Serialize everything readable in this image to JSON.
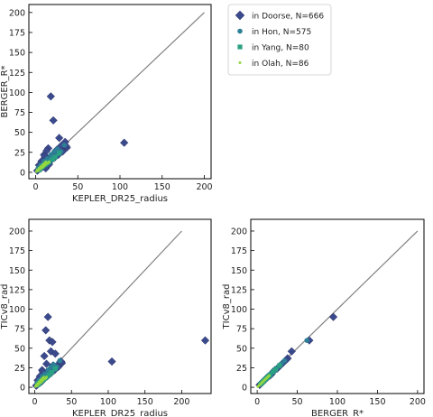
{
  "chart_data": [
    {
      "type": "scatter",
      "xlabel": "KEPLER_DR25_radius",
      "ylabel": "BERGER_R*",
      "xlim": [
        -8,
        208
      ],
      "ylim": [
        -8,
        210
      ],
      "xticks": [
        "0",
        "50",
        "100",
        "150",
        "200"
      ],
      "yticks": [
        "0",
        "25",
        "50",
        "75",
        "100",
        "125",
        "150",
        "175",
        "200"
      ],
      "reference_line": {
        "from": [
          0,
          0
        ],
        "to": [
          200,
          200
        ],
        "label": "y = x"
      },
      "series": [
        {
          "name": "in Doorse, N=666",
          "marker": "diamond",
          "color": "#3b4a8c",
          "points": [
            [
              18,
              95
            ],
            [
              21,
              65
            ],
            [
              15,
              30
            ],
            [
              28,
              43
            ],
            [
              35,
              38
            ],
            [
              105,
              37
            ],
            [
              10,
              22
            ],
            [
              12,
              18
            ],
            [
              17,
              14
            ],
            [
              25,
              28
            ],
            [
              30,
              27
            ],
            [
              33,
              30
            ],
            [
              22,
              23
            ],
            [
              8,
              10
            ],
            [
              5,
              6
            ],
            [
              3,
              3
            ],
            [
              14,
              12
            ],
            [
              20,
              17
            ],
            [
              27,
              22
            ],
            [
              32,
              26
            ],
            [
              37,
              31
            ],
            [
              4,
              9
            ],
            [
              6,
              5
            ],
            [
              9,
              7
            ],
            [
              11,
              20
            ],
            [
              13,
              27
            ],
            [
              16,
              10
            ],
            [
              19,
              21
            ],
            [
              23,
              19
            ],
            [
              26,
              24
            ],
            [
              30,
              33
            ],
            [
              36,
              33
            ],
            [
              2,
              2
            ],
            [
              7,
              14
            ],
            [
              12,
              5
            ]
          ]
        },
        {
          "name": "in Hon, N=575",
          "marker": "circle",
          "color": "#2c7f96",
          "points": [
            [
              5,
              4
            ],
            [
              7,
              6
            ],
            [
              9,
              8
            ],
            [
              11,
              10
            ],
            [
              13,
              11
            ],
            [
              15,
              13
            ],
            [
              17,
              15
            ],
            [
              19,
              17
            ],
            [
              21,
              18
            ],
            [
              24,
              20
            ],
            [
              27,
              23
            ],
            [
              30,
              26
            ],
            [
              3,
              5
            ],
            [
              6,
              9
            ],
            [
              10,
              14
            ],
            [
              14,
              17
            ],
            [
              18,
              22
            ],
            [
              22,
              26
            ],
            [
              26,
              29
            ],
            [
              34,
              34
            ]
          ]
        },
        {
          "name": "in Yang, N=80",
          "marker": "square",
          "color": "#2aa182",
          "points": [
            [
              4,
              3
            ],
            [
              6,
              5
            ],
            [
              8,
              7
            ],
            [
              10,
              9
            ],
            [
              12,
              10
            ],
            [
              14,
              12
            ],
            [
              16,
              13
            ],
            [
              20,
              16
            ],
            [
              23,
              19
            ],
            [
              28,
              24
            ]
          ]
        },
        {
          "name": "in Olah, N=86",
          "marker": "point",
          "color": "#93d741",
          "points": [
            [
              1,
              1
            ],
            [
              2,
              2
            ],
            [
              3,
              2
            ],
            [
              4,
              3
            ],
            [
              5,
              4
            ],
            [
              6,
              5
            ],
            [
              7,
              6
            ],
            [
              8,
              6
            ],
            [
              9,
              7
            ],
            [
              10,
              8
            ],
            [
              11,
              9
            ],
            [
              12,
              10
            ],
            [
              13,
              11
            ],
            [
              14,
              11
            ],
            [
              15,
              12
            ],
            [
              16,
              13
            ],
            [
              2,
              3
            ],
            [
              4,
              5
            ],
            [
              6,
              7
            ],
            [
              8,
              9
            ],
            [
              10,
              11
            ],
            [
              12,
              13
            ]
          ]
        }
      ]
    },
    {
      "type": "scatter",
      "xlabel": "KEPLER_DR25_radius",
      "ylabel": "TICv8_rad",
      "xlim": [
        -8,
        240
      ],
      "ylim": [
        -8,
        215
      ],
      "xticks": [
        "0",
        "50",
        "100",
        "150",
        "200"
      ],
      "yticks": [
        "0",
        "25",
        "50",
        "75",
        "100",
        "125",
        "150",
        "175",
        "200"
      ],
      "reference_line": {
        "from": [
          0,
          0
        ],
        "to": [
          200,
          200
        ],
        "label": "y = x"
      },
      "series": [
        {
          "name": "in Doorse, N=666",
          "marker": "diamond",
          "color": "#3b4a8c",
          "points": [
            [
              18,
              90
            ],
            [
              15,
              73
            ],
            [
              20,
              60
            ],
            [
              24,
              58
            ],
            [
              22,
              46
            ],
            [
              28,
              43
            ],
            [
              35,
              33
            ],
            [
              105,
              33
            ],
            [
              232,
              60
            ],
            [
              13,
              40
            ],
            [
              16,
              30
            ],
            [
              10,
              22
            ],
            [
              12,
              18
            ],
            [
              17,
              14
            ],
            [
              25,
              28
            ],
            [
              30,
              27
            ],
            [
              33,
              30
            ],
            [
              8,
              10
            ],
            [
              5,
              6
            ],
            [
              3,
              3
            ],
            [
              14,
              12
            ],
            [
              20,
              17
            ],
            [
              27,
              22
            ],
            [
              32,
              26
            ],
            [
              37,
              31
            ],
            [
              4,
              9
            ],
            [
              6,
              5
            ],
            [
              9,
              7
            ],
            [
              11,
              20
            ],
            [
              19,
              21
            ],
            [
              23,
              19
            ],
            [
              26,
              24
            ],
            [
              36,
              33
            ],
            [
              2,
              2
            ],
            [
              7,
              14
            ]
          ]
        },
        {
          "name": "in Hon, N=575",
          "marker": "circle",
          "color": "#2c7f96",
          "points": [
            [
              5,
              4
            ],
            [
              7,
              6
            ],
            [
              9,
              8
            ],
            [
              11,
              10
            ],
            [
              13,
              11
            ],
            [
              15,
              13
            ],
            [
              17,
              15
            ],
            [
              19,
              17
            ],
            [
              21,
              18
            ],
            [
              24,
              20
            ],
            [
              27,
              23
            ],
            [
              30,
              26
            ],
            [
              3,
              5
            ],
            [
              6,
              9
            ],
            [
              10,
              14
            ],
            [
              14,
              17
            ],
            [
              18,
              22
            ],
            [
              22,
              26
            ],
            [
              26,
              29
            ],
            [
              34,
              34
            ]
          ]
        },
        {
          "name": "in Yang, N=80",
          "marker": "square",
          "color": "#2aa182",
          "points": [
            [
              4,
              3
            ],
            [
              6,
              5
            ],
            [
              8,
              7
            ],
            [
              10,
              9
            ],
            [
              12,
              10
            ],
            [
              14,
              12
            ],
            [
              16,
              13
            ],
            [
              20,
              16
            ],
            [
              23,
              19
            ],
            [
              28,
              24
            ]
          ]
        },
        {
          "name": "in Olah, N=86",
          "marker": "point",
          "color": "#93d741",
          "points": [
            [
              1,
              1
            ],
            [
              2,
              2
            ],
            [
              3,
              2
            ],
            [
              4,
              3
            ],
            [
              5,
              4
            ],
            [
              6,
              5
            ],
            [
              7,
              6
            ],
            [
              8,
              6
            ],
            [
              9,
              7
            ],
            [
              10,
              8
            ],
            [
              11,
              9
            ],
            [
              12,
              10
            ],
            [
              13,
              11
            ],
            [
              14,
              11
            ],
            [
              15,
              12
            ],
            [
              16,
              13
            ],
            [
              2,
              3
            ],
            [
              4,
              5
            ],
            [
              6,
              7
            ],
            [
              8,
              9
            ],
            [
              10,
              11
            ],
            [
              12,
              13
            ]
          ]
        }
      ]
    },
    {
      "type": "scatter",
      "xlabel": "BERGER_R*",
      "ylabel": "TICv8_rad",
      "xlim": [
        -8,
        208
      ],
      "ylim": [
        -8,
        215
      ],
      "xticks": [
        "0",
        "50",
        "100",
        "150",
        "200"
      ],
      "yticks": [
        "0",
        "25",
        "50",
        "75",
        "100",
        "125",
        "150",
        "175",
        "200"
      ],
      "reference_line": {
        "from": [
          0,
          0
        ],
        "to": [
          200,
          200
        ],
        "label": "y = x"
      },
      "series": [
        {
          "name": "in Doorse, N=666",
          "marker": "diamond",
          "color": "#3b4a8c",
          "points": [
            [
              95,
              90
            ],
            [
              65,
              60
            ],
            [
              43,
              46
            ],
            [
              38,
              37
            ],
            [
              30,
              29
            ],
            [
              27,
              26
            ],
            [
              22,
              22
            ],
            [
              18,
              17
            ],
            [
              14,
              14
            ],
            [
              10,
              10
            ],
            [
              6,
              6
            ],
            [
              3,
              3
            ],
            [
              33,
              32
            ],
            [
              25,
              24
            ],
            [
              20,
              20
            ],
            [
              16,
              15
            ],
            [
              12,
              12
            ],
            [
              8,
              8
            ],
            [
              4,
              4
            ],
            [
              36,
              35
            ]
          ]
        },
        {
          "name": "in Hon, N=575",
          "marker": "circle",
          "color": "#2c7f96",
          "points": [
            [
              5,
              5
            ],
            [
              7,
              7
            ],
            [
              9,
              9
            ],
            [
              11,
              11
            ],
            [
              13,
              13
            ],
            [
              15,
              15
            ],
            [
              17,
              17
            ],
            [
              19,
              19
            ],
            [
              21,
              21
            ],
            [
              24,
              24
            ],
            [
              27,
              27
            ],
            [
              30,
              30
            ],
            [
              34,
              34
            ],
            [
              62,
              60
            ]
          ]
        },
        {
          "name": "in Yang, N=80",
          "marker": "square",
          "color": "#2aa182",
          "points": [
            [
              4,
              4
            ],
            [
              6,
              6
            ],
            [
              8,
              8
            ],
            [
              10,
              10
            ],
            [
              12,
              12
            ],
            [
              14,
              14
            ],
            [
              16,
              16
            ],
            [
              20,
              20
            ],
            [
              23,
              23
            ],
            [
              28,
              28
            ]
          ]
        },
        {
          "name": "in Olah, N=86",
          "marker": "point",
          "color": "#93d741",
          "points": [
            [
              1,
              1
            ],
            [
              2,
              2
            ],
            [
              3,
              3
            ],
            [
              4,
              4
            ],
            [
              5,
              5
            ],
            [
              6,
              6
            ],
            [
              7,
              7
            ],
            [
              8,
              8
            ],
            [
              9,
              9
            ],
            [
              10,
              10
            ],
            [
              11,
              11
            ],
            [
              12,
              12
            ],
            [
              13,
              13
            ],
            [
              14,
              14
            ],
            [
              15,
              15
            ]
          ]
        }
      ]
    }
  ],
  "legend": {
    "placement": "top-right",
    "entries": [
      {
        "label": "in Doorse, N=666",
        "marker": "diamond",
        "color": "#3b4a8c"
      },
      {
        "label": "in Hon, N=575",
        "marker": "circle",
        "color": "#2c7f96"
      },
      {
        "label": "in Yang, N=80",
        "marker": "square",
        "color": "#2aa182"
      },
      {
        "label": "in Olah, N=86",
        "marker": "point",
        "color": "#93d741"
      }
    ]
  },
  "colors": {
    "reference_line": "#808080",
    "axes": "#000000"
  }
}
